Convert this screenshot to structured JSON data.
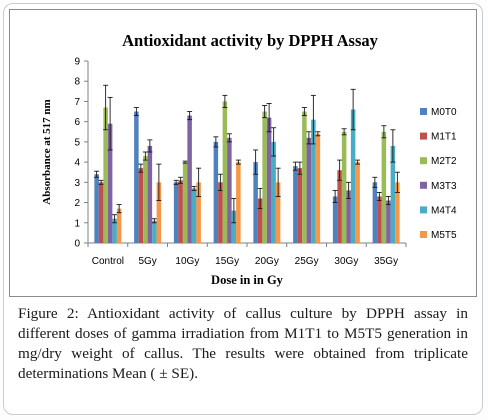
{
  "caption": {
    "label": "Figure 2:",
    "text": "Antioxidant activity of callus culture by DPPH assay in different doses of gamma irradiation from M1T1 to M5T5 generation in mg/dry weight of callus. The results were obtained from triplicate determinations Mean ( ± SE)."
  },
  "chart_data": {
    "type": "bar",
    "title": "Antioxidant  activity by DPPH Assay",
    "xlabel": "Dose in in  Gy",
    "ylabel": "Absorbance at 517 nm",
    "ylim": [
      0,
      9
    ],
    "yticks": [
      0,
      1,
      2,
      3,
      4,
      5,
      6,
      7,
      8,
      9
    ],
    "grid": false,
    "legend": "right",
    "error_bars": true,
    "categories": [
      "Control",
      "5Gy",
      "10Gy",
      "15Gy",
      "20Gy",
      "25Gy",
      "30Gy",
      "35Gy"
    ],
    "series": [
      {
        "name": "M0T0",
        "color": "#4f81bd",
        "values": [
          3.4,
          6.5,
          3.0,
          5.0,
          4.0,
          3.8,
          2.3,
          3.0
        ],
        "errors": [
          0.15,
          0.2,
          0.1,
          0.25,
          0.6,
          0.2,
          0.3,
          0.25
        ]
      },
      {
        "name": "M1T1",
        "color": "#c0504d",
        "values": [
          3.0,
          3.7,
          3.1,
          3.0,
          2.2,
          3.7,
          3.6,
          2.3
        ],
        "errors": [
          0.1,
          0.2,
          0.15,
          0.4,
          0.5,
          0.3,
          0.5,
          0.2
        ]
      },
      {
        "name": "M2T2",
        "color": "#9bbb59",
        "values": [
          6.7,
          4.3,
          4.0,
          7.0,
          6.5,
          6.5,
          5.5,
          5.5
        ],
        "errors": [
          1.1,
          0.2,
          0.05,
          0.3,
          0.3,
          0.2,
          0.15,
          0.3
        ]
      },
      {
        "name": "M3T3",
        "color": "#8064a2",
        "values": [
          5.9,
          4.8,
          6.3,
          5.2,
          6.2,
          5.2,
          2.6,
          2.1
        ],
        "errors": [
          1.3,
          0.3,
          0.2,
          0.2,
          0.7,
          0.3,
          0.4,
          0.2
        ]
      },
      {
        "name": "M4T4",
        "color": "#4bacc6",
        "values": [
          1.2,
          1.1,
          2.7,
          1.6,
          5.0,
          6.1,
          6.6,
          4.8
        ],
        "errors": [
          0.2,
          0.1,
          0.1,
          0.6,
          0.7,
          1.2,
          1.0,
          0.8
        ]
      },
      {
        "name": "M5T5",
        "color": "#f79646",
        "values": [
          1.7,
          3.0,
          3.0,
          4.0,
          3.0,
          5.4,
          4.0,
          3.0
        ],
        "errors": [
          0.2,
          0.9,
          0.7,
          0.1,
          0.7,
          0.1,
          0.1,
          0.5
        ]
      }
    ]
  }
}
